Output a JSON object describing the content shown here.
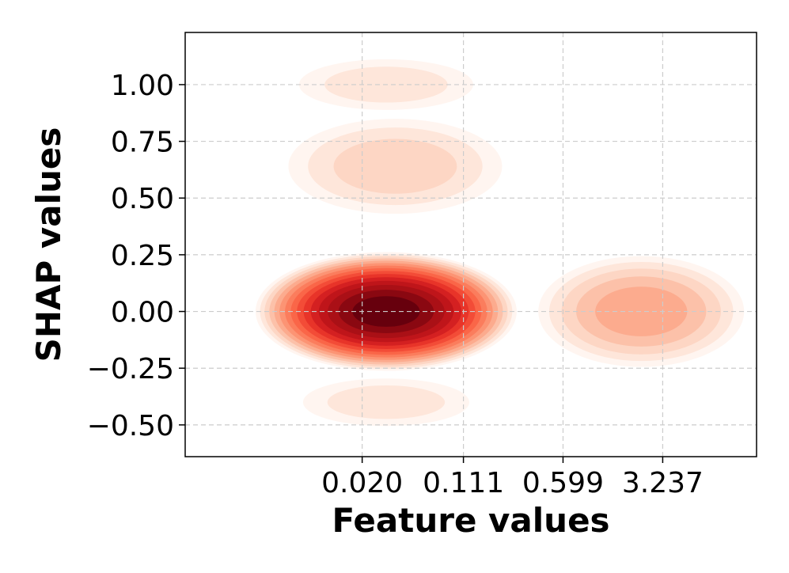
{
  "chart_data": {
    "type": "heatmap",
    "subtype": "2d-kde-density",
    "xlabel": "Feature values",
    "ylabel": "SHAP values",
    "x_tick_labels": [
      "0.020",
      "0.111",
      "0.599",
      "3.237"
    ],
    "y_ticks": [
      1.0,
      0.75,
      0.5,
      0.25,
      0.0,
      -0.25,
      -0.5
    ],
    "y_tick_labels": [
      "1.00",
      "0.75",
      "0.50",
      "0.25",
      "0.00",
      "−0.25",
      "−0.50"
    ],
    "ylim": [
      -0.64,
      1.23
    ],
    "x_scale": "log",
    "xlim_log10": [
      -3.0,
      1.2
    ],
    "grid": true,
    "colormap": "Reds",
    "colors": {
      "low": "#fff5f0",
      "mid": "#fb6a4a",
      "high": "#67000d",
      "grid": "#cccccc"
    },
    "density_peaks": [
      {
        "x": 0.03,
        "y": 0.0,
        "relative_density": 1.0
      },
      {
        "x": 2.25,
        "y": 0.0,
        "relative_density": 0.3
      },
      {
        "x": 0.035,
        "y": 0.64,
        "relative_density": 0.12
      },
      {
        "x": 0.03,
        "y": 1.0,
        "relative_density": 0.07
      },
      {
        "x": 0.03,
        "y": -0.4,
        "relative_density": 0.08
      }
    ]
  }
}
